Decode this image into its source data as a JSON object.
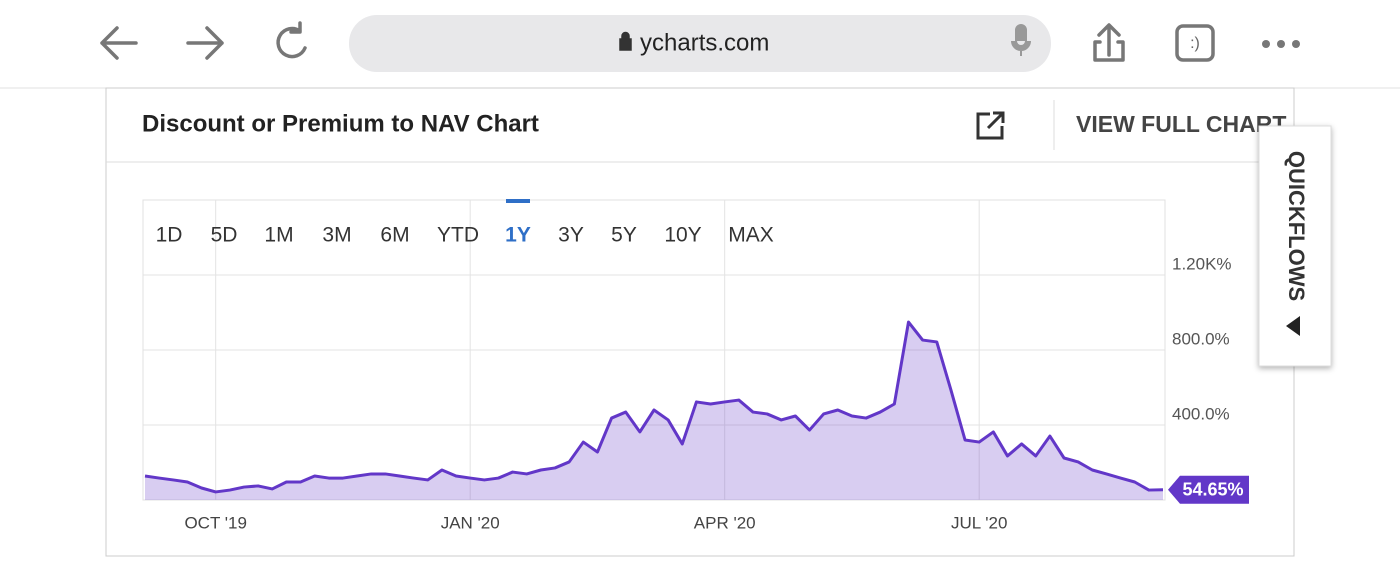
{
  "browser": {
    "url": "ycharts.com"
  },
  "card": {
    "title": "Discount or Premium to NAV Chart",
    "action": "VIEW FULL CHART",
    "side_tab": "QUICKFLOWS",
    "ranges": [
      "1D",
      "5D",
      "1M",
      "3M",
      "6M",
      "YTD",
      "1Y",
      "3Y",
      "5Y",
      "10Y",
      "MAX"
    ],
    "active_range": "1Y"
  },
  "chart_data": {
    "type": "area",
    "categories": [
      null,
      null,
      null,
      null,
      null,
      "OCT '19",
      null,
      null,
      null,
      null,
      null,
      null,
      null,
      null,
      null,
      null,
      null,
      null,
      null,
      null,
      null,
      null,
      null,
      "JAN '20",
      null,
      null,
      null,
      null,
      null,
      null,
      null,
      null,
      null,
      null,
      null,
      null,
      null,
      null,
      null,
      null,
      null,
      "APR '20",
      null,
      null,
      null,
      null,
      null,
      null,
      null,
      null,
      null,
      null,
      null,
      null,
      null,
      null,
      null,
      null,
      null,
      "JUL '20",
      null,
      null,
      null,
      null,
      null,
      null,
      null,
      null,
      null,
      null,
      null,
      null,
      null
    ],
    "values": [
      128,
      117,
      107,
      96,
      64,
      43,
      53,
      69,
      75,
      59,
      96,
      96,
      128,
      117,
      117,
      128,
      139,
      139,
      128,
      117,
      107,
      160,
      128,
      117,
      107,
      117,
      149,
      139,
      160,
      171,
      203,
      309,
      256,
      437,
      469,
      363,
      480,
      427,
      299,
      523,
      512,
      523,
      533,
      469,
      459,
      427,
      448,
      373,
      459,
      480,
      448,
      437,
      469,
      512,
      949,
      853,
      843,
      587,
      320,
      309,
      363,
      235,
      299,
      235,
      341,
      224,
      203,
      160,
      139,
      117,
      96,
      53,
      54.65
    ],
    "value_labels": [
      null,
      null,
      null,
      null,
      null,
      null,
      null,
      null,
      null,
      null,
      null,
      null,
      null,
      null,
      null,
      null,
      null,
      null,
      null,
      null,
      null,
      null,
      null,
      null,
      null,
      null,
      null,
      null,
      null,
      null,
      null,
      null,
      null,
      null,
      null,
      null,
      null,
      null,
      null,
      null,
      null,
      null,
      null,
      null,
      null,
      null,
      null,
      null,
      null,
      null,
      null,
      null,
      null,
      null,
      null,
      null,
      null,
      null,
      null,
      null,
      null,
      null,
      null,
      null,
      null,
      null,
      null,
      null,
      null,
      null,
      null,
      null,
      "54.65%"
    ],
    "color": "#6237c8",
    "ylim": [
      0,
      1600
    ],
    "yticks": [
      {
        "value": 400,
        "label": "400.0%"
      },
      {
        "value": 800,
        "label": "800.0%"
      },
      {
        "value": 1200,
        "label": "1.20K%"
      }
    ],
    "grid": true
  }
}
